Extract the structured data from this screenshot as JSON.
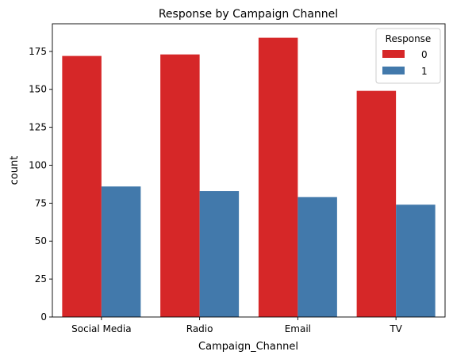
{
  "chart_data": {
    "type": "bar",
    "title": "Response by Campaign Channel",
    "xlabel": "Campaign_Channel",
    "ylabel": "count",
    "categories": [
      "Social Media",
      "Radio",
      "Email",
      "TV"
    ],
    "series": [
      {
        "name": "0",
        "values": [
          172,
          173,
          184,
          149
        ],
        "color": "#d62728"
      },
      {
        "name": "1",
        "values": [
          86,
          83,
          79,
          74
        ],
        "color": "#4279ab"
      }
    ],
    "ylim": [
      0,
      193.2
    ],
    "yticks": [
      0,
      25,
      50,
      75,
      100,
      125,
      150,
      175
    ],
    "grid": false,
    "legend": {
      "title": "Response",
      "placement": "top-right"
    }
  }
}
